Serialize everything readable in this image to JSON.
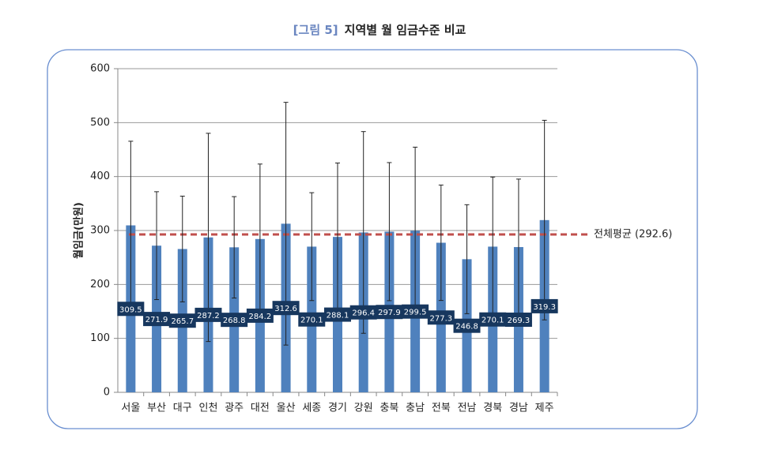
{
  "chart_data": {
    "type": "bar",
    "figure_label": "[그림 5]",
    "title": "지역별 월 임금수준 비교",
    "y_label": "월임금(만원)",
    "categories": [
      "서울",
      "부산",
      "대구",
      "인천",
      "광주",
      "대전",
      "울산",
      "세종",
      "경기",
      "강원",
      "충북",
      "충남",
      "전북",
      "전남",
      "경북",
      "경남",
      "제주"
    ],
    "values": [
      309.5,
      271.9,
      265.7,
      287.2,
      268.8,
      284.2,
      312.6,
      270.1,
      288.1,
      296.4,
      297.9,
      299.5,
      277.3,
      246.8,
      270.1,
      269.3,
      319.3
    ],
    "errors": [
      156,
      100,
      98,
      193,
      94,
      139,
      225,
      100,
      137,
      187,
      128,
      155,
      107,
      101,
      129,
      126,
      185
    ],
    "color": "#4f81bd",
    "label_color": "#17375e",
    "average": {
      "value": 292.6,
      "label": "전체평균 (292.6)",
      "color": "#c0504d"
    },
    "ylim": [
      0,
      600
    ],
    "yticks": [
      0,
      100,
      200,
      300,
      400,
      500,
      600
    ],
    "grid": true
  }
}
